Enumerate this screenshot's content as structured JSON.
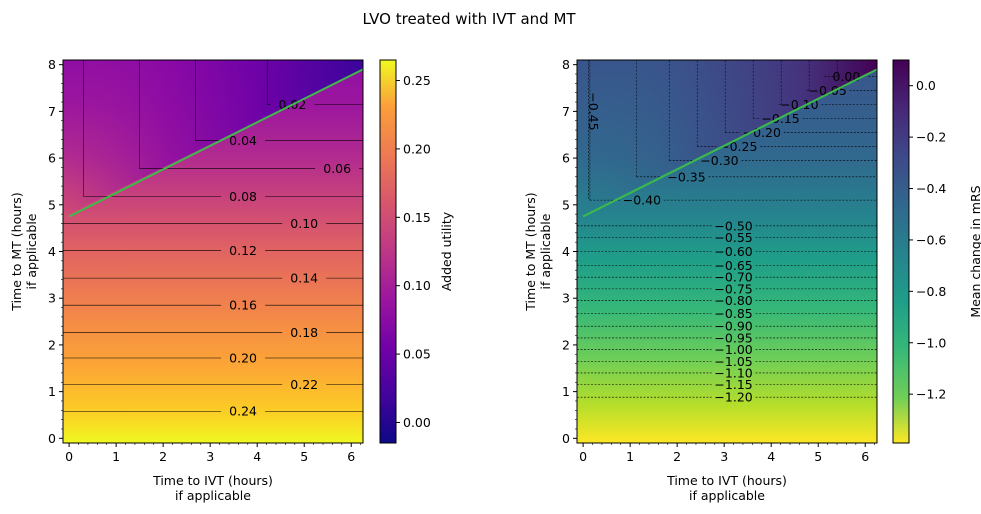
{
  "title": "LVO treated with IVT and MT",
  "colors": {
    "threshold_line": "#3dbb4a",
    "contour_line": "#000000"
  },
  "chart_data": [
    {
      "type": "heatmap",
      "panel": "left",
      "xlabel_line1": "Time to IVT (hours)",
      "xlabel_line2": "if applicable",
      "ylabel_line1": "Time to MT (hours)",
      "ylabel_line2": "if applicable",
      "xlim": [
        -0.13,
        6.25
      ],
      "ylim": [
        -0.1,
        8.1
      ],
      "xticks": [
        "0",
        "1",
        "2",
        "3",
        "4",
        "5",
        "6"
      ],
      "yticks": [
        "0",
        "1",
        "2",
        "3",
        "4",
        "5",
        "6",
        "7",
        "8"
      ],
      "colormap": "plasma",
      "colorbar_label": "Added utility",
      "colorbar_range": [
        -0.015,
        0.265
      ],
      "colorbar_ticks": [
        "0.00",
        "0.05",
        "0.10",
        "0.15",
        "0.20",
        "0.25"
      ],
      "contour_levels": [
        {
          "label": "0.02",
          "y": 7.15,
          "x": 4.75
        },
        {
          "label": "0.04",
          "y": 6.38,
          "x": 3.7
        },
        {
          "label": "0.06",
          "y": 5.78,
          "x": 5.7
        },
        {
          "label": "0.08",
          "y": 5.18,
          "x": 3.7
        },
        {
          "label": "0.10",
          "y": 4.6,
          "x": 5.0
        },
        {
          "label": "0.12",
          "y": 4.02,
          "x": 3.7
        },
        {
          "label": "0.14",
          "y": 3.43,
          "x": 5.0
        },
        {
          "label": "0.16",
          "y": 2.85,
          "x": 3.7
        },
        {
          "label": "0.18",
          "y": 2.27,
          "x": 5.0
        },
        {
          "label": "0.20",
          "y": 1.72,
          "x": 3.7
        },
        {
          "label": "0.22",
          "y": 1.15,
          "x": 5.0
        },
        {
          "label": "0.24",
          "y": 0.58,
          "x": 3.7
        }
      ],
      "threshold_line": {
        "x": [
          0,
          6.25
        ],
        "y": [
          4.75,
          7.9
        ]
      }
    },
    {
      "type": "heatmap",
      "panel": "right",
      "xlabel_line1": "Time to IVT (hours)",
      "xlabel_line2": "if applicable",
      "ylabel_line1": "Time to MT (hours)",
      "ylabel_line2": "if applicable",
      "xlim": [
        -0.13,
        6.25
      ],
      "ylim": [
        -0.1,
        8.1
      ],
      "xticks": [
        "0",
        "1",
        "2",
        "3",
        "4",
        "5",
        "6"
      ],
      "yticks": [
        "0",
        "1",
        "2",
        "3",
        "4",
        "5",
        "6",
        "7",
        "8"
      ],
      "colormap": "viridis_r",
      "colorbar_label": "Mean change in mRS",
      "colorbar_range": [
        -1.39,
        0.1
      ],
      "colorbar_ticks": [
        "0.0",
        "−0.2",
        "−0.4",
        "−0.6",
        "−0.8",
        "−1.0",
        "−1.2"
      ],
      "contour_levels": [
        {
          "label": "0.00",
          "y": 7.75,
          "x": 5.6
        },
        {
          "label": "−0.05",
          "y": 7.45,
          "x": 5.2
        },
        {
          "label": "−0.10",
          "y": 7.15,
          "x": 4.6
        },
        {
          "label": "−0.15",
          "y": 6.85,
          "x": 4.2
        },
        {
          "label": "−0.20",
          "y": 6.55,
          "x": 3.8
        },
        {
          "label": "−0.25",
          "y": 6.25,
          "x": 3.3
        },
        {
          "label": "−0.30",
          "y": 5.95,
          "x": 2.9
        },
        {
          "label": "−0.35",
          "y": 5.6,
          "x": 2.2
        },
        {
          "label": "−0.40",
          "y": 5.1,
          "x": 1.25
        },
        {
          "label": "−0.45",
          "y": 7.0,
          "x": 0.12
        },
        {
          "label": "−0.50",
          "y": 4.55,
          "x": 3.2
        },
        {
          "label": "−0.55",
          "y": 4.3,
          "x": 3.2
        },
        {
          "label": "−0.60",
          "y": 4.0,
          "x": 3.2
        },
        {
          "label": "−0.65",
          "y": 3.7,
          "x": 3.2
        },
        {
          "label": "−0.70",
          "y": 3.45,
          "x": 3.2
        },
        {
          "label": "−0.75",
          "y": 3.2,
          "x": 3.2
        },
        {
          "label": "−0.80",
          "y": 2.95,
          "x": 3.2
        },
        {
          "label": "−0.85",
          "y": 2.67,
          "x": 3.2
        },
        {
          "label": "−0.90",
          "y": 2.4,
          "x": 3.2
        },
        {
          "label": "−0.95",
          "y": 2.15,
          "x": 3.2
        },
        {
          "label": "−1.00",
          "y": 1.9,
          "x": 3.2
        },
        {
          "label": "−1.05",
          "y": 1.65,
          "x": 3.2
        },
        {
          "label": "−1.10",
          "y": 1.4,
          "x": 3.2
        },
        {
          "label": "−1.15",
          "y": 1.15,
          "x": 3.2
        },
        {
          "label": "−1.20",
          "y": 0.88,
          "x": 3.2
        }
      ],
      "threshold_line": {
        "x": [
          0,
          6.25
        ],
        "y": [
          4.75,
          7.9
        ]
      }
    }
  ]
}
